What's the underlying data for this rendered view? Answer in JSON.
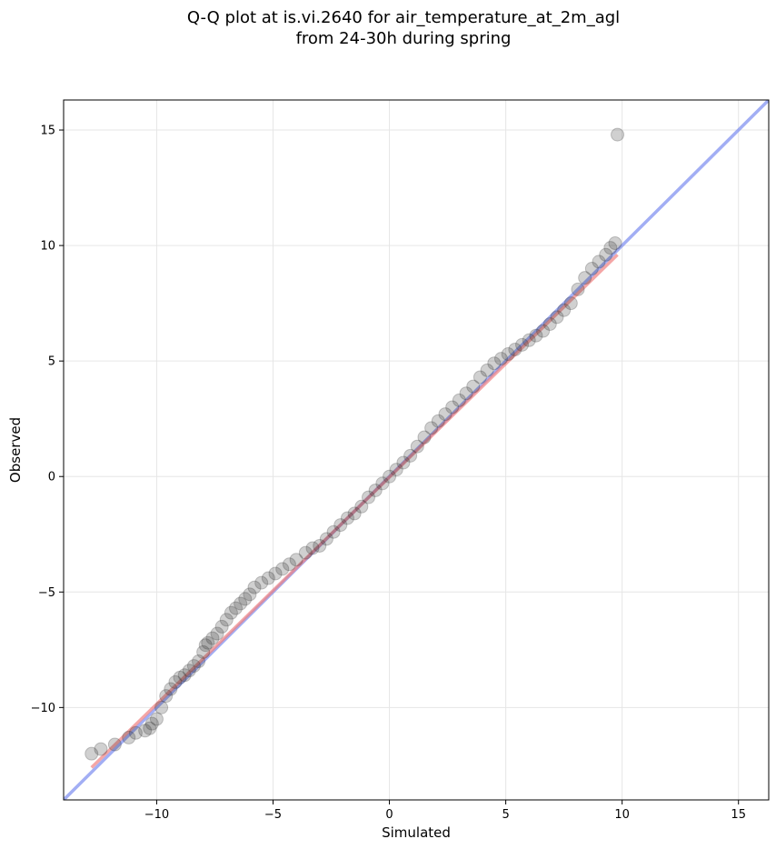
{
  "chart_data": {
    "type": "scatter",
    "title": "Q-Q plot at is.vi.2640 for air_temperature_at_2m_agl",
    "subtitle": "from 24-30h during spring",
    "xlabel": "Simulated",
    "ylabel": "Observed",
    "xlim": [
      -14,
      16.3
    ],
    "ylim": [
      -14,
      16.3
    ],
    "xticks": [
      -10,
      -5,
      0,
      5,
      10,
      15
    ],
    "yticks": [
      -10,
      -5,
      0,
      5,
      10,
      15
    ],
    "xtick_labels": [
      "−10",
      "−5",
      "0",
      "5",
      "10",
      "15"
    ],
    "ytick_labels": [
      "−10",
      "−5",
      "0",
      "5",
      "10",
      "15"
    ],
    "grid": true,
    "lines": [
      {
        "color": "#7b8cf0",
        "x": [
          -14,
          16.3
        ],
        "y": [
          -14,
          16.3
        ]
      },
      {
        "color": "#f08080",
        "x": [
          -12.8,
          9.8
        ],
        "y": [
          -12.6,
          9.6
        ]
      }
    ],
    "points": {
      "color": "#2b2b2b",
      "x": [
        -12.8,
        -12.4,
        -11.8,
        -11.2,
        -10.9,
        -10.5,
        -10.3,
        -10.2,
        -10.0,
        -9.8,
        -9.6,
        -9.4,
        -9.2,
        -9.0,
        -8.8,
        -8.6,
        -8.4,
        -8.2,
        -8.0,
        -7.9,
        -7.8,
        -7.6,
        -7.4,
        -7.2,
        -7.0,
        -6.8,
        -6.6,
        -6.4,
        -6.2,
        -6.0,
        -5.8,
        -5.5,
        -5.2,
        -4.9,
        -4.6,
        -4.3,
        -4.0,
        -3.6,
        -3.3,
        -3.0,
        -2.7,
        -2.4,
        -2.1,
        -1.8,
        -1.5,
        -1.2,
        -0.9,
        -0.6,
        -0.3,
        0.0,
        0.3,
        0.6,
        0.9,
        1.2,
        1.5,
        1.8,
        2.1,
        2.4,
        2.7,
        3.0,
        3.3,
        3.6,
        3.9,
        4.2,
        4.5,
        4.8,
        5.1,
        5.4,
        5.7,
        6.0,
        6.3,
        6.6,
        6.9,
        7.2,
        7.5,
        7.8,
        8.1,
        8.4,
        8.7,
        9.0,
        9.3,
        9.5,
        9.7,
        9.8
      ],
      "y": [
        -12.0,
        -11.8,
        -11.6,
        -11.3,
        -11.1,
        -11.0,
        -10.9,
        -10.7,
        -10.5,
        -10.0,
        -9.5,
        -9.2,
        -8.9,
        -8.7,
        -8.6,
        -8.4,
        -8.2,
        -8.0,
        -7.6,
        -7.3,
        -7.2,
        -7.0,
        -6.8,
        -6.5,
        -6.2,
        -5.9,
        -5.7,
        -5.5,
        -5.3,
        -5.1,
        -4.8,
        -4.6,
        -4.4,
        -4.2,
        -4.0,
        -3.8,
        -3.6,
        -3.3,
        -3.1,
        -3.0,
        -2.7,
        -2.4,
        -2.1,
        -1.8,
        -1.6,
        -1.3,
        -0.9,
        -0.6,
        -0.3,
        0.0,
        0.3,
        0.6,
        0.9,
        1.3,
        1.7,
        2.1,
        2.4,
        2.7,
        3.0,
        3.3,
        3.6,
        3.9,
        4.3,
        4.6,
        4.9,
        5.1,
        5.3,
        5.5,
        5.7,
        5.9,
        6.1,
        6.3,
        6.6,
        6.9,
        7.2,
        7.5,
        8.1,
        8.6,
        9.0,
        9.3,
        9.6,
        9.9,
        10.1,
        14.8
      ]
    }
  }
}
